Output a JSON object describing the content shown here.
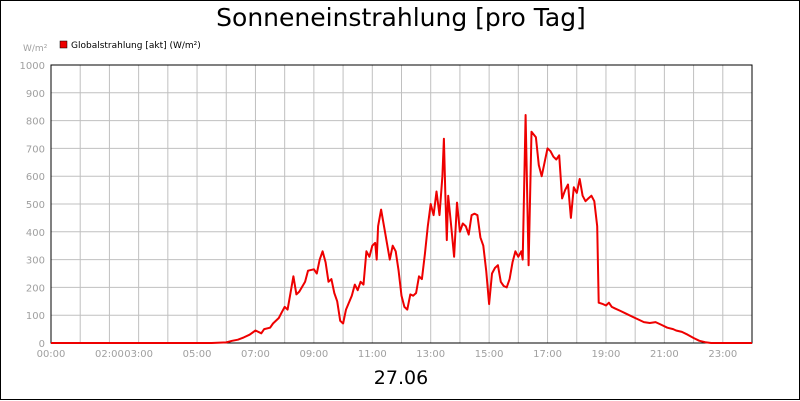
{
  "header": {
    "title": "Sonneneinstrahlung [pro Tag]"
  },
  "footer": {
    "date": "27.06"
  },
  "colors": {
    "series": "#ee0000",
    "grid": "#c0c0c0",
    "axis_text": "#a0a0a0",
    "frame": "#000000"
  },
  "chart_data": {
    "type": "line",
    "title": "Sonneneinstrahlung [pro Tag]",
    "unit_label": "W/m²",
    "xlabel": "27.06",
    "ylabel": "W/m²",
    "ylim": [
      0,
      1000
    ],
    "xlim_hours": [
      0,
      24
    ],
    "y_ticks": [
      0,
      100,
      200,
      300,
      400,
      500,
      600,
      700,
      800,
      900,
      1000
    ],
    "x_ticks": [
      {
        "label": "00:00",
        "hour": 0
      },
      {
        "label": "02:00",
        "hour": 2
      },
      {
        "label": "03:00",
        "hour": 3
      },
      {
        "label": "05:00",
        "hour": 5
      },
      {
        "label": "07:00",
        "hour": 7
      },
      {
        "label": "09:00",
        "hour": 9
      },
      {
        "label": "11:00",
        "hour": 11
      },
      {
        "label": "13:00",
        "hour": 13
      },
      {
        "label": "15:00",
        "hour": 15
      },
      {
        "label": "17:00",
        "hour": 17
      },
      {
        "label": "19:00",
        "hour": 19
      },
      {
        "label": "21:00",
        "hour": 21
      },
      {
        "label": "23:00",
        "hour": 23
      }
    ],
    "grid": true,
    "legend": {
      "placement": "top-left"
    },
    "series": [
      {
        "name": "Globalstrahlung [akt] (W/m²)",
        "color": "#ee0000",
        "points": [
          [
            0.0,
            0
          ],
          [
            5.5,
            0
          ],
          [
            6.0,
            2
          ],
          [
            6.2,
            8
          ],
          [
            6.4,
            12
          ],
          [
            6.6,
            20
          ],
          [
            6.8,
            30
          ],
          [
            7.0,
            45
          ],
          [
            7.2,
            35
          ],
          [
            7.3,
            50
          ],
          [
            7.5,
            55
          ],
          [
            7.6,
            70
          ],
          [
            7.8,
            90
          ],
          [
            7.9,
            110
          ],
          [
            8.0,
            130
          ],
          [
            8.1,
            120
          ],
          [
            8.2,
            180
          ],
          [
            8.3,
            240
          ],
          [
            8.4,
            175
          ],
          [
            8.5,
            185
          ],
          [
            8.7,
            220
          ],
          [
            8.8,
            260
          ],
          [
            9.0,
            265
          ],
          [
            9.1,
            250
          ],
          [
            9.2,
            300
          ],
          [
            9.3,
            330
          ],
          [
            9.4,
            290
          ],
          [
            9.5,
            220
          ],
          [
            9.6,
            230
          ],
          [
            9.7,
            180
          ],
          [
            9.8,
            150
          ],
          [
            9.9,
            80
          ],
          [
            10.0,
            70
          ],
          [
            10.1,
            120
          ],
          [
            10.3,
            170
          ],
          [
            10.4,
            210
          ],
          [
            10.5,
            190
          ],
          [
            10.6,
            220
          ],
          [
            10.7,
            210
          ],
          [
            10.8,
            330
          ],
          [
            10.9,
            310
          ],
          [
            11.0,
            350
          ],
          [
            11.1,
            360
          ],
          [
            11.15,
            300
          ],
          [
            11.2,
            420
          ],
          [
            11.3,
            480
          ],
          [
            11.4,
            420
          ],
          [
            11.5,
            360
          ],
          [
            11.6,
            300
          ],
          [
            11.7,
            350
          ],
          [
            11.8,
            330
          ],
          [
            11.9,
            260
          ],
          [
            12.0,
            170
          ],
          [
            12.1,
            130
          ],
          [
            12.2,
            120
          ],
          [
            12.3,
            175
          ],
          [
            12.4,
            170
          ],
          [
            12.5,
            180
          ],
          [
            12.6,
            240
          ],
          [
            12.7,
            230
          ],
          [
            12.8,
            320
          ],
          [
            12.9,
            420
          ],
          [
            13.0,
            500
          ],
          [
            13.1,
            460
          ],
          [
            13.2,
            545
          ],
          [
            13.3,
            460
          ],
          [
            13.4,
            600
          ],
          [
            13.45,
            735
          ],
          [
            13.5,
            540
          ],
          [
            13.55,
            370
          ],
          [
            13.6,
            530
          ],
          [
            13.7,
            420
          ],
          [
            13.8,
            310
          ],
          [
            13.9,
            505
          ],
          [
            14.0,
            400
          ],
          [
            14.1,
            430
          ],
          [
            14.2,
            420
          ],
          [
            14.3,
            390
          ],
          [
            14.4,
            460
          ],
          [
            14.5,
            465
          ],
          [
            14.6,
            460
          ],
          [
            14.7,
            380
          ],
          [
            14.8,
            350
          ],
          [
            14.9,
            260
          ],
          [
            15.0,
            140
          ],
          [
            15.1,
            250
          ],
          [
            15.2,
            270
          ],
          [
            15.3,
            280
          ],
          [
            15.4,
            220
          ],
          [
            15.5,
            205
          ],
          [
            15.6,
            200
          ],
          [
            15.7,
            230
          ],
          [
            15.8,
            290
          ],
          [
            15.9,
            330
          ],
          [
            16.0,
            310
          ],
          [
            16.1,
            330
          ],
          [
            16.15,
            300
          ],
          [
            16.25,
            820
          ],
          [
            16.35,
            280
          ],
          [
            16.45,
            760
          ],
          [
            16.6,
            740
          ],
          [
            16.7,
            640
          ],
          [
            16.8,
            600
          ],
          [
            16.9,
            650
          ],
          [
            17.0,
            700
          ],
          [
            17.1,
            690
          ],
          [
            17.2,
            670
          ],
          [
            17.3,
            660
          ],
          [
            17.4,
            675
          ],
          [
            17.5,
            520
          ],
          [
            17.6,
            550
          ],
          [
            17.7,
            570
          ],
          [
            17.8,
            450
          ],
          [
            17.9,
            560
          ],
          [
            18.0,
            540
          ],
          [
            18.1,
            590
          ],
          [
            18.2,
            530
          ],
          [
            18.3,
            510
          ],
          [
            18.4,
            520
          ],
          [
            18.5,
            530
          ],
          [
            18.6,
            510
          ],
          [
            18.7,
            420
          ],
          [
            18.75,
            145
          ],
          [
            18.9,
            140
          ],
          [
            19.0,
            135
          ],
          [
            19.1,
            145
          ],
          [
            19.2,
            130
          ],
          [
            19.3,
            125
          ],
          [
            19.5,
            115
          ],
          [
            19.7,
            105
          ],
          [
            19.9,
            95
          ],
          [
            20.1,
            85
          ],
          [
            20.3,
            75
          ],
          [
            20.5,
            72
          ],
          [
            20.7,
            75
          ],
          [
            20.9,
            65
          ],
          [
            21.1,
            55
          ],
          [
            21.3,
            50
          ],
          [
            21.4,
            45
          ],
          [
            21.6,
            40
          ],
          [
            21.8,
            30
          ],
          [
            22.0,
            18
          ],
          [
            22.2,
            8
          ],
          [
            22.4,
            3
          ],
          [
            22.6,
            0
          ],
          [
            24.0,
            0
          ]
        ]
      }
    ]
  }
}
